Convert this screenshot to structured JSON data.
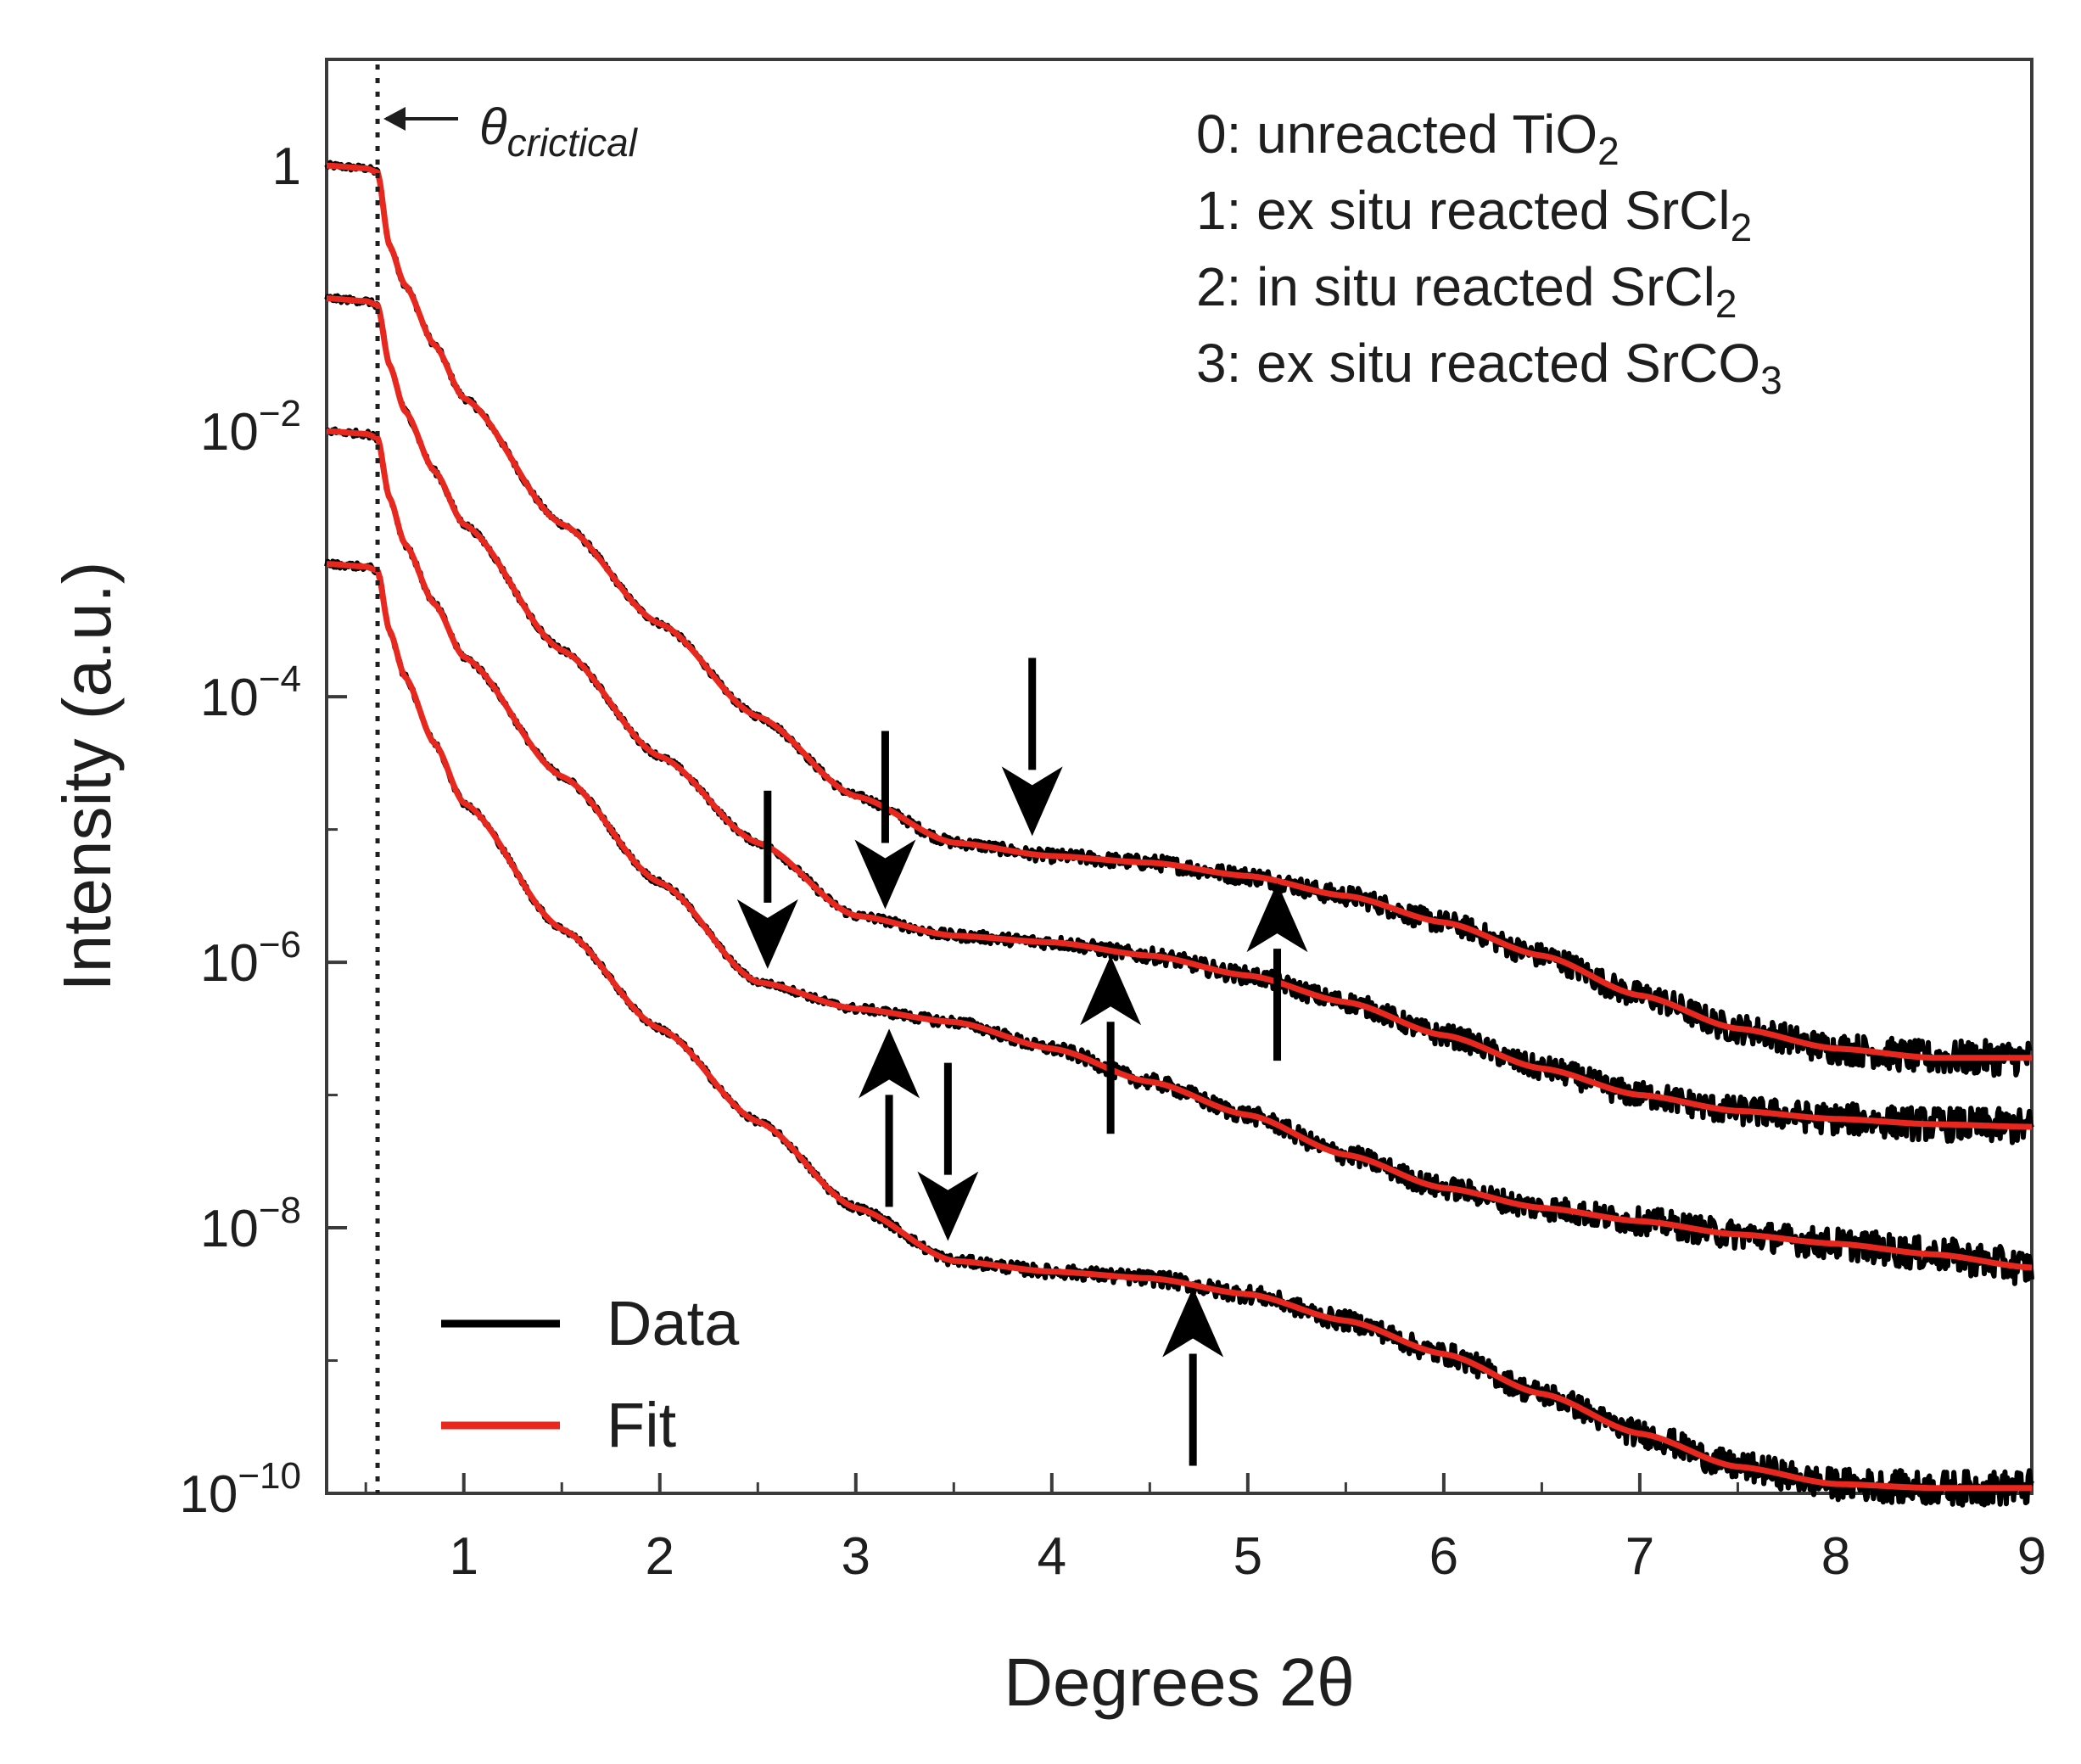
{
  "chart_data": {
    "type": "line",
    "title": "",
    "xlabel": "Degrees 2θ",
    "ylabel": "Intensity (a.u.)",
    "xlim": [
      0.3,
      9.0
    ],
    "ylim_log10": [
      -10,
      0.8
    ],
    "y_scale": "log",
    "grid": false,
    "x_ticks": [
      1,
      2,
      3,
      4,
      5,
      6,
      7,
      8,
      9
    ],
    "x_tick_labels": [
      "1",
      "2",
      "3",
      "4",
      "5",
      "6",
      "7",
      "8",
      "9"
    ],
    "y_ticks_log10": [
      0,
      -2,
      -4,
      -6,
      -8,
      -10
    ],
    "y_tick_labels": [
      {
        "base": "1",
        "exp": ""
      },
      {
        "base": "10",
        "exp": "−2"
      },
      {
        "base": "10",
        "exp": "−4"
      },
      {
        "base": "10",
        "exp": "−6"
      },
      {
        "base": "10",
        "exp": "−8"
      },
      {
        "base": "10",
        "exp": "−10"
      }
    ],
    "critical_angle": {
      "x": 0.56,
      "label": "θ",
      "label_sub": "crictical"
    },
    "legend": {
      "placement": "bottom-left",
      "entries": [
        {
          "label": "Data",
          "color": "#000000"
        },
        {
          "label": "Fit",
          "color": "#e8281e"
        }
      ]
    },
    "sample_key": {
      "placement": "top-right",
      "entries": [
        {
          "text": "0: unreacted TiO",
          "sub": "2",
          "tail": ""
        },
        {
          "text": "1: ex situ reacted SrCl",
          "sub": "2",
          "tail": ""
        },
        {
          "text": "2: in situ reacted SrCl",
          "sub": "2",
          "tail": ""
        },
        {
          "text": "3: ex situ reacted SrCO",
          "sub": "3",
          "tail": ""
        }
      ]
    },
    "series": [
      {
        "name": "0",
        "points": [
          [
            0.3,
            0
          ],
          [
            0.5,
            -0.02
          ],
          [
            0.56,
            -0.05
          ],
          [
            0.62,
            -0.6
          ],
          [
            0.7,
            -0.9
          ],
          [
            0.85,
            -1.35
          ],
          [
            1.0,
            -1.75
          ],
          [
            1.5,
            -2.7
          ],
          [
            2.0,
            -3.45
          ],
          [
            2.5,
            -4.15
          ],
          [
            3.0,
            -4.75
          ],
          [
            3.5,
            -5.1
          ],
          [
            4.0,
            -5.2
          ],
          [
            4.5,
            -5.25
          ],
          [
            5.0,
            -5.35
          ],
          [
            5.5,
            -5.5
          ],
          [
            6.0,
            -5.7
          ],
          [
            6.5,
            -5.95
          ],
          [
            7.0,
            -6.25
          ],
          [
            7.5,
            -6.5
          ],
          [
            8.0,
            -6.65
          ],
          [
            8.5,
            -6.72
          ],
          [
            9.0,
            -6.72
          ]
        ]
      },
      {
        "name": "1",
        "points": [
          [
            0.3,
            -1.0
          ],
          [
            0.5,
            -1.02
          ],
          [
            0.56,
            -1.05
          ],
          [
            0.62,
            -1.5
          ],
          [
            0.7,
            -1.85
          ],
          [
            0.85,
            -2.3
          ],
          [
            1.0,
            -2.7
          ],
          [
            1.5,
            -3.65
          ],
          [
            2.0,
            -4.45
          ],
          [
            2.5,
            -5.1
          ],
          [
            3.0,
            -5.65
          ],
          [
            3.5,
            -5.8
          ],
          [
            4.0,
            -5.85
          ],
          [
            4.5,
            -5.95
          ],
          [
            5.0,
            -6.1
          ],
          [
            5.5,
            -6.3
          ],
          [
            6.0,
            -6.55
          ],
          [
            6.5,
            -6.8
          ],
          [
            7.0,
            -7.0
          ],
          [
            7.5,
            -7.12
          ],
          [
            8.0,
            -7.18
          ],
          [
            8.5,
            -7.22
          ],
          [
            9.0,
            -7.24
          ]
        ]
      },
      {
        "name": "2",
        "points": [
          [
            0.3,
            -2.0
          ],
          [
            0.5,
            -2.02
          ],
          [
            0.56,
            -2.05
          ],
          [
            0.62,
            -2.5
          ],
          [
            0.7,
            -2.85
          ],
          [
            0.85,
            -3.3
          ],
          [
            1.0,
            -3.7
          ],
          [
            1.5,
            -4.6
          ],
          [
            2.0,
            -5.4
          ],
          [
            2.5,
            -6.15
          ],
          [
            3.0,
            -6.35
          ],
          [
            3.5,
            -6.45
          ],
          [
            4.0,
            -6.65
          ],
          [
            4.5,
            -6.9
          ],
          [
            5.0,
            -7.15
          ],
          [
            5.5,
            -7.45
          ],
          [
            6.0,
            -7.7
          ],
          [
            6.5,
            -7.85
          ],
          [
            7.0,
            -7.95
          ],
          [
            7.5,
            -8.05
          ],
          [
            8.0,
            -8.12
          ],
          [
            8.5,
            -8.2
          ],
          [
            9.0,
            -8.3
          ]
        ]
      },
      {
        "name": "3",
        "points": [
          [
            0.3,
            -3.0
          ],
          [
            0.5,
            -3.02
          ],
          [
            0.56,
            -3.05
          ],
          [
            0.62,
            -3.5
          ],
          [
            0.7,
            -3.85
          ],
          [
            0.85,
            -4.35
          ],
          [
            1.0,
            -4.8
          ],
          [
            1.5,
            -5.75
          ],
          [
            2.0,
            -6.5
          ],
          [
            2.5,
            -7.2
          ],
          [
            3.0,
            -7.85
          ],
          [
            3.5,
            -8.25
          ],
          [
            4.0,
            -8.33
          ],
          [
            4.5,
            -8.38
          ],
          [
            5.0,
            -8.5
          ],
          [
            5.5,
            -8.7
          ],
          [
            6.0,
            -8.95
          ],
          [
            6.5,
            -9.25
          ],
          [
            7.0,
            -9.55
          ],
          [
            7.5,
            -9.8
          ],
          [
            8.0,
            -9.93
          ],
          [
            8.5,
            -9.96
          ],
          [
            9.0,
            -9.96
          ]
        ]
      }
    ],
    "arrows": [
      {
        "x": 3.9,
        "y_log10": -5.05,
        "direction": "down"
      },
      {
        "x": 3.15,
        "y_log10": -5.6,
        "direction": "down"
      },
      {
        "x": 2.55,
        "y_log10": -6.05,
        "direction": "down"
      },
      {
        "x": 3.47,
        "y_log10": -8.1,
        "direction": "down"
      },
      {
        "x": 5.15,
        "y_log10": -5.4,
        "direction": "up"
      },
      {
        "x": 4.3,
        "y_log10": -5.95,
        "direction": "up"
      },
      {
        "x": 3.17,
        "y_log10": -6.5,
        "direction": "up"
      },
      {
        "x": 4.72,
        "y_log10": -8.45,
        "direction": "up"
      }
    ]
  }
}
